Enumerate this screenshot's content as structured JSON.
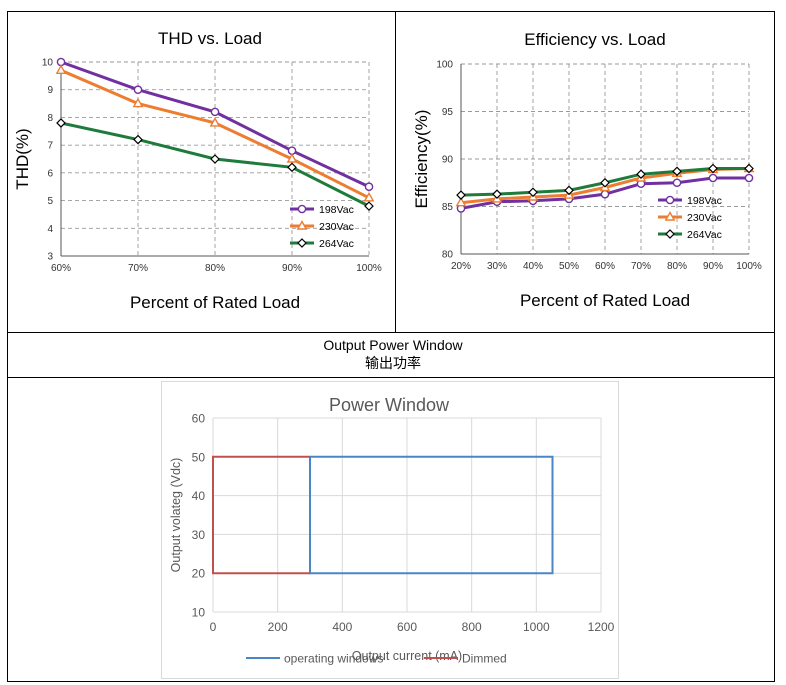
{
  "section": {
    "title_en": "Output Power Window",
    "title_cn": "输出功率"
  },
  "colors": {
    "v198": "#7030a0",
    "v230": "#ed7d31",
    "v264": "#1e7b3c",
    "operating": "#4a86c5",
    "dimmed": "#c0504d"
  },
  "chart_data": [
    {
      "type": "line",
      "title": "THD vs. Load",
      "xlabel": "Percent of Rated Load",
      "ylabel": "THD(%)",
      "categories": [
        "60%",
        "70%",
        "80%",
        "90%",
        "100%"
      ],
      "ylim": [
        3,
        10
      ],
      "yticks": [
        "3",
        "4",
        "5",
        "6",
        "7",
        "8",
        "9",
        "10"
      ],
      "grid": true,
      "legend_position": "bottom-right",
      "series": [
        {
          "name": "198Vac",
          "marker": "circle",
          "color_key": "v198",
          "values": [
            10.0,
            9.0,
            8.2,
            6.8,
            5.5
          ]
        },
        {
          "name": "230Vac",
          "marker": "triangle",
          "color_key": "v230",
          "values": [
            9.7,
            8.5,
            7.8,
            6.5,
            5.1
          ]
        },
        {
          "name": "264Vac",
          "marker": "diamond",
          "color_key": "v264",
          "values": [
            7.8,
            7.2,
            6.5,
            6.2,
            4.8
          ]
        }
      ]
    },
    {
      "type": "line",
      "title": "Efficiency vs. Load",
      "xlabel": "Percent of Rated Load",
      "ylabel": "Efficiency(%)",
      "categories": [
        "20%",
        "30%",
        "40%",
        "50%",
        "60%",
        "70%",
        "80%",
        "90%",
        "100%"
      ],
      "ylim": [
        80,
        100
      ],
      "yticks": [
        "80",
        "85",
        "90",
        "95",
        "100"
      ],
      "grid": true,
      "legend_position": "bottom-right",
      "series": [
        {
          "name": "198Vac",
          "marker": "circle",
          "color_key": "v198",
          "values": [
            84.8,
            85.5,
            85.6,
            85.8,
            86.3,
            87.4,
            87.5,
            88.0,
            88.0
          ]
        },
        {
          "name": "230Vac",
          "marker": "triangle",
          "color_key": "v230",
          "values": [
            85.4,
            85.8,
            86.0,
            86.2,
            87.0,
            88.0,
            88.5,
            88.9,
            89.0
          ]
        },
        {
          "name": "264Vac",
          "marker": "diamond",
          "color_key": "v264",
          "values": [
            86.2,
            86.3,
            86.5,
            86.7,
            87.5,
            88.4,
            88.7,
            89.0,
            89.0
          ]
        }
      ]
    },
    {
      "type": "line",
      "title": "Power Window",
      "xlabel": "Output current (mA)",
      "ylabel": "Output volateg (Vdc)",
      "xlim": [
        0,
        1200
      ],
      "ylim": [
        10,
        60
      ],
      "xticks": [
        "0",
        "200",
        "400",
        "600",
        "800",
        "1000",
        "1200"
      ],
      "yticks": [
        "10",
        "20",
        "30",
        "40",
        "50",
        "60"
      ],
      "grid": true,
      "legend_position": "bottom",
      "series": [
        {
          "name": "operating windows",
          "color_key": "operating",
          "x": [
            300,
            1050,
            1050,
            300,
            300
          ],
          "y": [
            50,
            50,
            20,
            20,
            50
          ]
        },
        {
          "name": "Dimmed",
          "color_key": "dimmed",
          "x": [
            300,
            0,
            0,
            300
          ],
          "y": [
            50,
            50,
            20,
            20
          ]
        }
      ]
    }
  ]
}
